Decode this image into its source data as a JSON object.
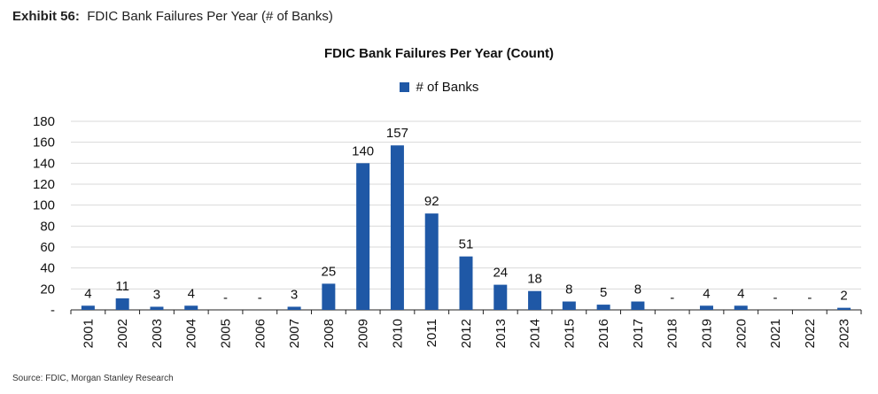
{
  "exhibit": {
    "label": "Exhibit 56:",
    "text": "FDIC Bank Failures Per Year (# of Banks)"
  },
  "source": "Source: FDIC, Morgan Stanley Research",
  "colors": {
    "bar": "#1f58a6",
    "grid": "#d9d9d9",
    "axis": "#222222"
  },
  "chart_data": {
    "type": "bar",
    "title": "FDIC Bank Failures Per Year (Count)",
    "legend_position": "top-center",
    "grid": true,
    "ylim": [
      0,
      180
    ],
    "yticks": [
      0,
      20,
      40,
      60,
      80,
      100,
      120,
      140,
      160,
      180
    ],
    "ytick_labels": [
      "-",
      "20",
      "40",
      "60",
      "80",
      "100",
      "120",
      "140",
      "160",
      "180"
    ],
    "categories": [
      "2001",
      "2002",
      "2003",
      "2004",
      "2005",
      "2006",
      "2007",
      "2008",
      "2009",
      "2010",
      "2011",
      "2012",
      "2013",
      "2014",
      "2015",
      "2016",
      "2017",
      "2018",
      "2019",
      "2020",
      "2021",
      "2022",
      "2023"
    ],
    "series": [
      {
        "name": "# of Banks",
        "values": [
          4,
          11,
          3,
          4,
          0,
          0,
          3,
          25,
          140,
          157,
          92,
          51,
          24,
          18,
          8,
          5,
          8,
          0,
          4,
          4,
          0,
          0,
          2
        ],
        "labels": [
          "4",
          "11",
          "3",
          "4",
          "-",
          "-",
          "3",
          "25",
          "140",
          "157",
          "92",
          "51",
          "24",
          "18",
          "8",
          "5",
          "8",
          "-",
          "4",
          "4",
          "-",
          "-",
          "2"
        ]
      }
    ]
  }
}
